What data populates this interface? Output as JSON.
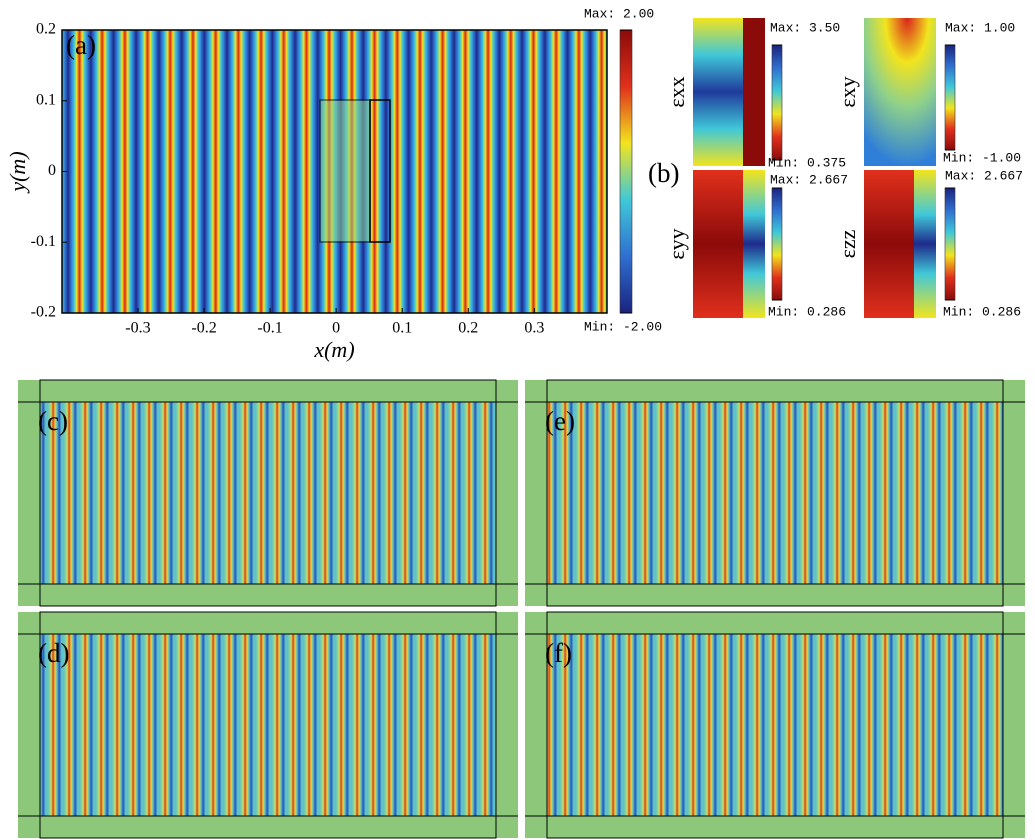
{
  "chart_data": [
    {
      "type": "heatmap",
      "panel_label": "(a)",
      "xlabel": "x(m)",
      "ylabel": "y(m)",
      "xlim": [
        -0.415,
        0.41
      ],
      "ylim": [
        -0.2,
        0.2
      ],
      "xticks": [
        -0.3,
        -0.2,
        -0.1,
        0,
        0.1,
        0.2,
        0.3
      ],
      "yticks": [
        -0.2,
        -0.1,
        0,
        0.1,
        0.2
      ],
      "colorbar": {
        "max": {
          "value": 2,
          "label": "Max: 2.00"
        },
        "min": {
          "value": -2,
          "label": "Min: -2.00"
        }
      }
    },
    {
      "type": "heatmap-grid",
      "panel_label": "(b)",
      "subplots": [
        {
          "label": "εxx",
          "colorbar": {
            "max": {
              "value": 3.5,
              "label": "Max: 3.50"
            },
            "min": {
              "value": 0.375,
              "label": "Min: 0.375"
            }
          }
        },
        {
          "label": "εxy",
          "colorbar": {
            "max": {
              "value": 1,
              "label": "Max: 1.00"
            },
            "min": {
              "value": -1,
              "label": "Min: -1.00"
            }
          }
        },
        {
          "label": "εyy",
          "colorbar": {
            "max": {
              "value": 2.667,
              "label": "Max: 2.667"
            },
            "min": {
              "value": 0.286,
              "label": "Min: 0.286"
            }
          }
        },
        {
          "label": "εzz",
          "colorbar": {
            "max": {
              "value": 2.667,
              "label": "Max: 2.667"
            },
            "min": {
              "value": 0.286,
              "label": "Min: 0.286"
            }
          }
        }
      ]
    },
    {
      "type": "field",
      "panel_label": "(c)"
    },
    {
      "type": "field",
      "panel_label": "(d)"
    },
    {
      "type": "field",
      "panel_label": "(e)"
    },
    {
      "type": "field",
      "panel_label": "(f)"
    }
  ]
}
